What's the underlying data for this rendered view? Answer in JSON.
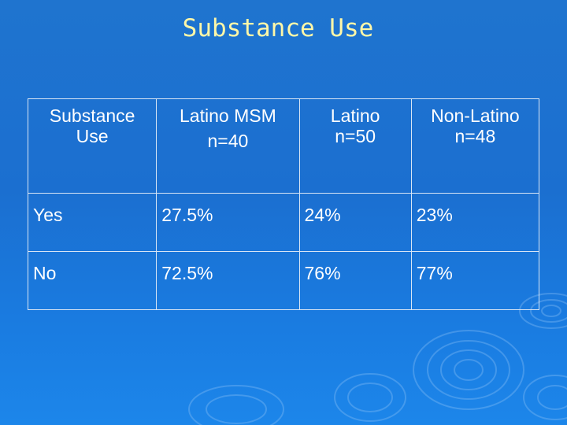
{
  "slide": {
    "title": "Substance Use"
  },
  "table": {
    "headers": [
      [
        "Substance",
        "Use"
      ],
      [
        "Latino MSM",
        "n=40"
      ],
      [
        "Latino",
        "n=50"
      ],
      [
        "Non-Latino",
        "n=48"
      ]
    ],
    "rows": [
      [
        "Yes",
        "27.5%",
        "24%",
        "23%"
      ],
      [
        "No",
        "72.5%",
        "76%",
        "77%"
      ]
    ]
  },
  "colors": {
    "background": "#1b6fd0",
    "title": "#fff7a8",
    "text": "#ffffff",
    "border": "#d9e6f5"
  }
}
